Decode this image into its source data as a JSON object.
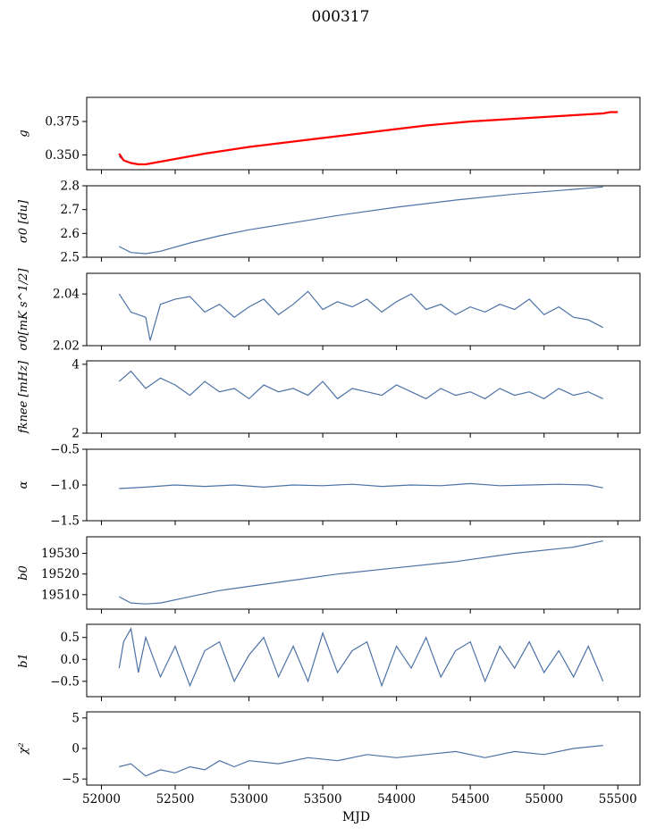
{
  "figure": {
    "title": "000317"
  },
  "colors": {
    "series": "#4c72a6",
    "model": "#ff0000"
  },
  "chart_data": [
    {
      "type": "line",
      "ylabel": "g",
      "xlim": [
        51900,
        55650
      ],
      "ylim": [
        0.339,
        0.393
      ],
      "yticks": [
        0.35,
        0.375
      ],
      "ytick_labels": [
        "0.350",
        "0.375"
      ],
      "series": [
        {
          "x": [
            52120,
            52150,
            52200,
            52250,
            52300,
            52400,
            52500,
            52700,
            53000,
            53300,
            53600,
            53900,
            54200,
            54500,
            54800,
            55100,
            55400
          ],
          "y": [
            0.349,
            0.346,
            0.344,
            0.343,
            0.343,
            0.345,
            0.347,
            0.351,
            0.356,
            0.36,
            0.364,
            0.368,
            0.372,
            0.375,
            0.377,
            0.379,
            0.381
          ]
        },
        {
          "x": [
            52120,
            52150,
            52200,
            52250,
            52300,
            52400,
            52500,
            52700,
            53000,
            53300,
            53600,
            53900,
            54200,
            54500,
            54800,
            55100,
            55400,
            55450,
            55500
          ],
          "y": [
            0.351,
            0.346,
            0.344,
            0.343,
            0.343,
            0.345,
            0.347,
            0.351,
            0.356,
            0.36,
            0.364,
            0.368,
            0.372,
            0.375,
            0.377,
            0.379,
            0.381,
            0.382,
            0.382
          ]
        }
      ]
    },
    {
      "type": "line",
      "ylabel": "σ0 [du]",
      "xlim": [
        51900,
        55650
      ],
      "ylim": [
        2.5,
        2.8
      ],
      "yticks": [
        2.5,
        2.6,
        2.7,
        2.8
      ],
      "ytick_labels": [
        "2.5",
        "2.6",
        "2.7",
        "2.8"
      ],
      "series": [
        {
          "x": [
            52120,
            52200,
            52300,
            52400,
            52600,
            52800,
            53000,
            53300,
            53600,
            54000,
            54400,
            54800,
            55200,
            55400
          ],
          "y": [
            2.545,
            2.52,
            2.515,
            2.525,
            2.56,
            2.59,
            2.615,
            2.645,
            2.675,
            2.71,
            2.74,
            2.765,
            2.785,
            2.795
          ]
        }
      ]
    },
    {
      "type": "line",
      "ylabel": "σ0[mK s^1/2]",
      "xlim": [
        51900,
        55650
      ],
      "ylim": [
        2.02,
        2.048
      ],
      "yticks": [
        2.02,
        2.04
      ],
      "ytick_labels": [
        "2.02",
        "2.04"
      ],
      "series": [
        {
          "x": [
            52120,
            52200,
            52300,
            52330,
            52400,
            52500,
            52600,
            52700,
            52800,
            52900,
            53000,
            53100,
            53200,
            53300,
            53400,
            53500,
            53600,
            53700,
            53800,
            53900,
            54000,
            54100,
            54200,
            54300,
            54400,
            54500,
            54600,
            54700,
            54800,
            54900,
            55000,
            55100,
            55200,
            55300,
            55400
          ],
          "y": [
            2.04,
            2.033,
            2.031,
            2.022,
            2.036,
            2.038,
            2.039,
            2.033,
            2.036,
            2.031,
            2.035,
            2.038,
            2.032,
            2.036,
            2.041,
            2.034,
            2.037,
            2.035,
            2.038,
            2.033,
            2.037,
            2.04,
            2.034,
            2.036,
            2.032,
            2.035,
            2.033,
            2.036,
            2.034,
            2.038,
            2.032,
            2.035,
            2.031,
            2.03,
            2.027
          ]
        }
      ]
    },
    {
      "type": "line",
      "ylabel": "fknee [mHz]",
      "xlim": [
        51900,
        55650
      ],
      "ylim": [
        2,
        4.1
      ],
      "yticks": [
        2,
        4
      ],
      "ytick_labels": [
        "2",
        "4"
      ],
      "series": [
        {
          "x": [
            52120,
            52200,
            52300,
            52400,
            52500,
            52600,
            52700,
            52800,
            52900,
            53000,
            53100,
            53200,
            53300,
            53400,
            53500,
            53600,
            53700,
            53800,
            53900,
            54000,
            54100,
            54200,
            54300,
            54400,
            54500,
            54600,
            54700,
            54800,
            54900,
            55000,
            55100,
            55200,
            55300,
            55400
          ],
          "y": [
            3.5,
            3.8,
            3.3,
            3.6,
            3.4,
            3.1,
            3.5,
            3.2,
            3.3,
            3.0,
            3.4,
            3.2,
            3.3,
            3.1,
            3.5,
            3.0,
            3.3,
            3.2,
            3.1,
            3.4,
            3.2,
            3.0,
            3.3,
            3.1,
            3.2,
            3.0,
            3.3,
            3.1,
            3.2,
            3.0,
            3.3,
            3.1,
            3.2,
            3.0
          ]
        }
      ]
    },
    {
      "type": "line",
      "ylabel": "α",
      "xlim": [
        51900,
        55650
      ],
      "ylim": [
        -1.5,
        -0.5
      ],
      "yticks": [
        -1.5,
        -1.0,
        -0.5
      ],
      "ytick_labels": [
        "−1.5",
        "−1.0",
        "−0.5"
      ],
      "series": [
        {
          "x": [
            52120,
            52300,
            52500,
            52700,
            52900,
            53100,
            53300,
            53500,
            53700,
            53900,
            54100,
            54300,
            54500,
            54700,
            54900,
            55100,
            55300,
            55400
          ],
          "y": [
            -1.05,
            -1.03,
            -1.0,
            -1.02,
            -1.0,
            -1.03,
            -1.0,
            -1.01,
            -0.99,
            -1.02,
            -1.0,
            -1.01,
            -0.98,
            -1.01,
            -1.0,
            -0.99,
            -1.0,
            -1.04
          ]
        }
      ]
    },
    {
      "type": "line",
      "ylabel": "b0",
      "xlim": [
        51900,
        55650
      ],
      "ylim": [
        19503,
        19538
      ],
      "yticks": [
        19510,
        19520,
        19530
      ],
      "ytick_labels": [
        "19510",
        "19520",
        "19530"
      ],
      "series": [
        {
          "x": [
            52120,
            52200,
            52300,
            52400,
            52600,
            52800,
            53000,
            53300,
            53600,
            54000,
            54400,
            54800,
            55200,
            55400
          ],
          "y": [
            19509,
            19506,
            19505.5,
            19506,
            19509,
            19512,
            19514,
            19517,
            19520,
            19523,
            19526,
            19530,
            19533,
            19536
          ]
        }
      ]
    },
    {
      "type": "line",
      "ylabel": "b1",
      "xlim": [
        51900,
        55650
      ],
      "ylim": [
        -0.85,
        0.8
      ],
      "yticks": [
        -0.5,
        0.0,
        0.5
      ],
      "ytick_labels": [
        "−0.5",
        "0.0",
        "0.5"
      ],
      "series": [
        {
          "x": [
            52120,
            52150,
            52200,
            52250,
            52300,
            52400,
            52500,
            52600,
            52700,
            52800,
            52900,
            53000,
            53100,
            53200,
            53300,
            53400,
            53500,
            53600,
            53700,
            53800,
            53900,
            54000,
            54100,
            54200,
            54300,
            54400,
            54500,
            54600,
            54700,
            54800,
            54900,
            55000,
            55100,
            55200,
            55300,
            55400
          ],
          "y": [
            -0.2,
            0.4,
            0.7,
            -0.3,
            0.5,
            -0.4,
            0.3,
            -0.6,
            0.2,
            0.4,
            -0.5,
            0.1,
            0.5,
            -0.4,
            0.3,
            -0.5,
            0.6,
            -0.3,
            0.2,
            0.4,
            -0.6,
            0.3,
            -0.2,
            0.5,
            -0.4,
            0.2,
            0.4,
            -0.5,
            0.3,
            -0.2,
            0.4,
            -0.3,
            0.2,
            -0.4,
            0.3,
            -0.5
          ]
        }
      ]
    },
    {
      "type": "line",
      "ylabel": "χ²",
      "xlabel": "MJD",
      "xlim": [
        51900,
        55650
      ],
      "ylim": [
        -6,
        6
      ],
      "yticks": [
        -5,
        0,
        5
      ],
      "ytick_labels": [
        "−5",
        "0",
        "5"
      ],
      "xticks": [
        52000,
        52500,
        53000,
        53500,
        54000,
        54500,
        55000,
        55500
      ],
      "xtick_labels": [
        "52000",
        "52500",
        "53000",
        "53500",
        "54000",
        "54500",
        "55000",
        "55500"
      ],
      "series": [
        {
          "x": [
            52120,
            52200,
            52300,
            52400,
            52500,
            52600,
            52700,
            52800,
            52900,
            53000,
            53200,
            53400,
            53600,
            53800,
            54000,
            54200,
            54400,
            54600,
            54800,
            55000,
            55200,
            55400
          ],
          "y": [
            -3.0,
            -2.5,
            -4.5,
            -3.5,
            -4.0,
            -3.0,
            -3.5,
            -2.0,
            -3.0,
            -2.0,
            -2.5,
            -1.5,
            -2.0,
            -1.0,
            -1.5,
            -1.0,
            -0.5,
            -1.5,
            -0.5,
            -1.0,
            0.0,
            0.5
          ]
        }
      ]
    }
  ]
}
